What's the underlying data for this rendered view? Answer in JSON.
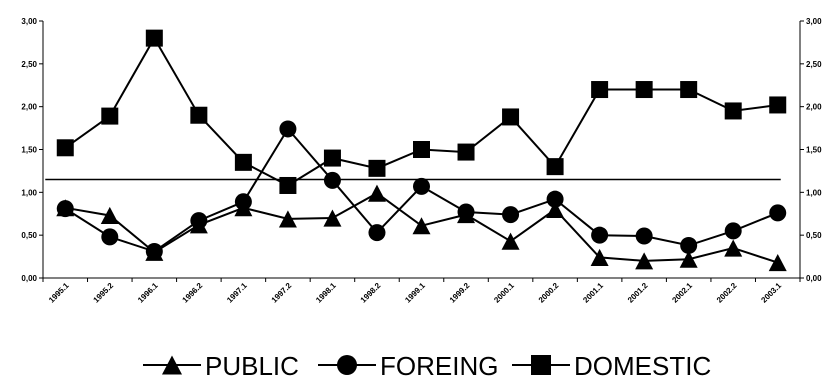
{
  "chart_data": {
    "type": "line",
    "categories": [
      "1995.1",
      "1995.2",
      "1996.1",
      "1996.2",
      "1997.1",
      "1997.2",
      "1998.1",
      "1998.2",
      "1999.1",
      "1999.2",
      "2000.1",
      "2000.2",
      "2001.1",
      "2001.2",
      "2002.1",
      "2002.2",
      "2003.1"
    ],
    "series": [
      {
        "name": "PUBLIC",
        "marker": "triangle",
        "values": [
          0.82,
          0.73,
          0.3,
          0.62,
          0.82,
          0.69,
          0.7,
          0.99,
          0.61,
          0.74,
          0.43,
          0.8,
          0.24,
          0.2,
          0.22,
          0.35,
          0.18
        ]
      },
      {
        "name": "FOREING",
        "marker": "circle",
        "values": [
          0.81,
          0.48,
          0.31,
          0.67,
          0.89,
          1.74,
          1.14,
          0.53,
          1.07,
          0.77,
          0.74,
          0.92,
          0.5,
          0.49,
          0.38,
          0.55,
          0.76
        ]
      },
      {
        "name": "DOMESTIC",
        "marker": "square",
        "values": [
          1.52,
          1.89,
          2.8,
          1.9,
          1.35,
          1.08,
          1.4,
          1.28,
          1.5,
          1.47,
          1.88,
          1.3,
          2.2,
          2.2,
          2.2,
          1.95,
          2.02
        ]
      }
    ],
    "reference_line": {
      "value": 1.15
    },
    "ylim": [
      0,
      3
    ],
    "y_ticks": [
      "0,00",
      "0,50",
      "1,00",
      "1,50",
      "2,00",
      "2,50",
      "3,00"
    ],
    "title": "",
    "xlabel": "",
    "ylabel": "",
    "grid": false,
    "legend_position": "bottom",
    "colors": {
      "line": "#000000",
      "marker": "#000000",
      "background": "#ffffff"
    }
  }
}
